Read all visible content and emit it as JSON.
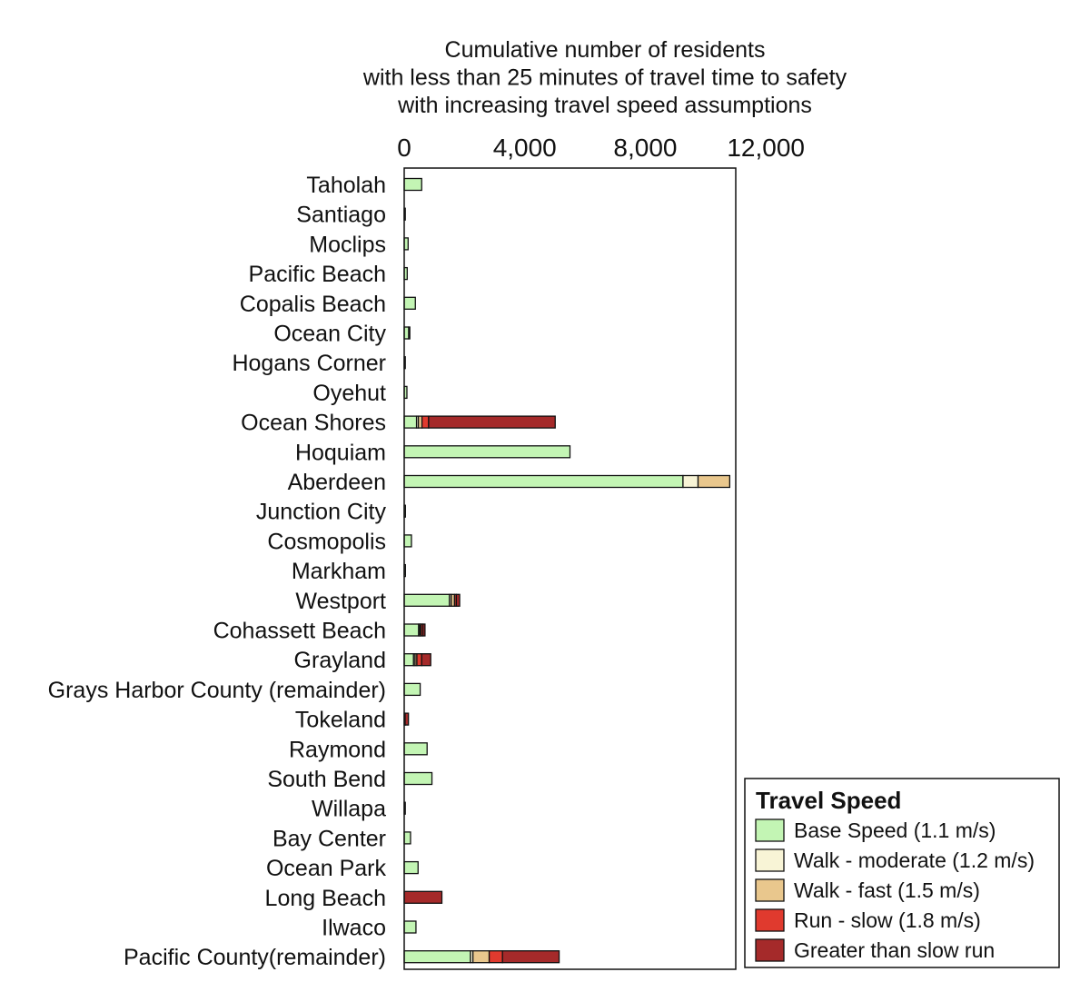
{
  "chart_data": {
    "type": "bar",
    "orientation": "horizontal",
    "stacked": true,
    "title_lines": [
      "Cumulative number of residents",
      "with less than 25 minutes of travel time to safety",
      "with increasing travel speed assumptions"
    ],
    "xlim": [
      0,
      11000
    ],
    "x_ticks": [
      {
        "value": 0,
        "label": "0"
      },
      {
        "value": 4000,
        "label": "4,000"
      },
      {
        "value": 8000,
        "label": "8,000"
      },
      {
        "value": 12000,
        "label": "12,000"
      }
    ],
    "grid": false,
    "legend": {
      "title": "Travel Speed",
      "position": "bottom-right"
    },
    "categories": [
      "Taholah",
      "Santiago",
      "Moclips",
      "Pacific Beach",
      "Copalis Beach",
      "Ocean City",
      "Hogans Corner",
      "Oyehut",
      "Ocean Shores",
      "Hoquiam",
      "Aberdeen",
      "Junction City",
      "Cosmopolis",
      "Markham",
      "Westport",
      "Cohassett Beach",
      "Grayland",
      "Grays Harbor County (remainder)",
      "Tokeland",
      "Raymond",
      "South Bend",
      "Willapa",
      "Bay Center",
      "Ocean Park",
      "Long Beach",
      "Ilwaco",
      "Pacific County(remainder)"
    ],
    "series": [
      {
        "name": "Base Speed (1.1 m/s)",
        "color": "#c3f5b4",
        "values": [
          580,
          20,
          130,
          100,
          370,
          150,
          30,
          90,
          410,
          5500,
          9250,
          40,
          240,
          40,
          1500,
          480,
          310,
          530,
          0,
          760,
          920,
          30,
          210,
          460,
          0,
          390,
          2200
        ]
      },
      {
        "name": "Walk - moderate (1.2 m/s)",
        "color": "#f8f4d6",
        "values": [
          0,
          0,
          0,
          0,
          0,
          0,
          0,
          0,
          60,
          0,
          500,
          0,
          0,
          0,
          60,
          40,
          50,
          0,
          0,
          0,
          0,
          0,
          0,
          0,
          0,
          0,
          80
        ]
      },
      {
        "name": "Walk - fast (1.5 m/s)",
        "color": "#e9c78d",
        "values": [
          0,
          0,
          0,
          0,
          0,
          0,
          0,
          0,
          120,
          0,
          1050,
          0,
          0,
          0,
          110,
          40,
          60,
          0,
          0,
          0,
          0,
          0,
          0,
          0,
          0,
          0,
          540
        ]
      },
      {
        "name": "Run - slow (1.8 m/s)",
        "color": "#e03a2e",
        "values": [
          0,
          0,
          0,
          0,
          0,
          0,
          0,
          0,
          220,
          0,
          0,
          0,
          0,
          0,
          60,
          60,
          160,
          0,
          30,
          0,
          0,
          0,
          0,
          0,
          0,
          0,
          440
        ]
      },
      {
        "name": "Greater than slow run",
        "color": "#a52a2a",
        "values": [
          0,
          0,
          0,
          0,
          0,
          30,
          0,
          0,
          4200,
          0,
          0,
          0,
          0,
          0,
          110,
          70,
          300,
          0,
          110,
          0,
          0,
          0,
          0,
          0,
          1250,
          0,
          1880
        ]
      }
    ]
  }
}
